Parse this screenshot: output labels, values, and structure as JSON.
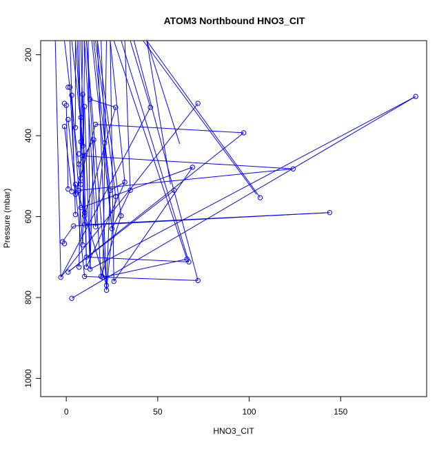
{
  "chart_data": {
    "type": "line",
    "title": "ATOM3 Northbound HNO3_CIT",
    "xlabel": "HNO3_CIT",
    "ylabel": "Pressure (mbar)",
    "xlim": [
      -14,
      197
    ],
    "ylim": [
      1045,
      165
    ],
    "y_reversed": true,
    "grid": false,
    "legend": "none",
    "marker": "open-circle",
    "series_color": "#0000ff",
    "x_ticks": [
      0,
      50,
      100,
      150
    ],
    "y_ticks": [
      200,
      400,
      600,
      800,
      1000
    ],
    "series": [
      {
        "points": [
          [
            -3,
            750
          ],
          [
            1,
            737
          ],
          [
            -2,
            662
          ],
          [
            -1,
            667
          ],
          [
            4,
            623
          ],
          [
            5,
            595
          ],
          [
            10,
            590
          ],
          [
            5,
            545
          ],
          [
            7,
            535
          ],
          [
            5,
            520
          ],
          [
            8,
            520
          ],
          [
            8,
            505
          ],
          [
            7,
            470
          ],
          [
            9,
            450
          ],
          [
            7,
            445
          ],
          [
            10,
            450
          ],
          [
            9,
            425
          ],
          [
            8,
            415
          ],
          [
            5,
            380
          ],
          [
            3,
            300
          ],
          [
            2,
            280
          ],
          [
            1,
            280
          ],
          [
            0,
            325
          ],
          [
            -1,
            320
          ],
          [
            -1,
            377
          ],
          [
            1,
            360
          ],
          [
            1,
            532
          ],
          [
            3,
            538
          ],
          [
            9,
            670
          ],
          [
            7,
            725
          ],
          [
            10,
            748
          ],
          [
            11,
            725
          ],
          [
            11,
            700
          ],
          [
            10,
            620
          ],
          [
            16,
            625
          ],
          [
            25,
            630
          ],
          [
            22,
            770
          ],
          [
            22,
            782
          ],
          [
            26,
            760
          ],
          [
            20,
            750
          ],
          [
            24,
            535
          ],
          [
            32,
            515
          ],
          [
            27,
            550
          ],
          [
            30,
            598
          ],
          [
            35,
            535
          ],
          [
            16,
            372
          ],
          [
            21,
            418
          ],
          [
            27,
            330
          ],
          [
            46,
            330
          ],
          [
            69,
            478
          ],
          [
            97,
            393
          ],
          [
            124,
            482
          ],
          [
            144,
            590
          ],
          [
            191,
            303
          ],
          [
            72,
            320
          ],
          [
            106,
            553
          ],
          [
            59,
            535
          ],
          [
            67,
            712
          ],
          [
            66,
            705
          ],
          [
            72,
            758
          ],
          [
            3,
            802
          ],
          [
            8,
            578
          ],
          [
            10,
            598
          ],
          [
            13,
            310
          ],
          [
            9,
            298
          ],
          [
            8,
            355
          ],
          [
            10,
            328
          ],
          [
            15,
            410
          ],
          [
            13,
            730
          ],
          [
            19,
            748
          ]
        ]
      }
    ],
    "segments": [
      [
        -6,
        165,
        -3,
        750
      ],
      [
        -1,
        165,
        8,
        520
      ],
      [
        2,
        165,
        5,
        595
      ],
      [
        3,
        165,
        10,
        450
      ],
      [
        5,
        165,
        9,
        425
      ],
      [
        5,
        165,
        5,
        380
      ],
      [
        6,
        165,
        10,
        590
      ],
      [
        7,
        165,
        8,
        505
      ],
      [
        8,
        165,
        11,
        700
      ],
      [
        9,
        165,
        7,
        725
      ],
      [
        10,
        165,
        9,
        670
      ],
      [
        10,
        165,
        16,
        625
      ],
      [
        11,
        165,
        22,
        770
      ],
      [
        11,
        165,
        19,
        748
      ],
      [
        12,
        165,
        13,
        730
      ],
      [
        14,
        165,
        25,
        630
      ],
      [
        15,
        165,
        24,
        535
      ],
      [
        16,
        165,
        27,
        550
      ],
      [
        17,
        165,
        22,
        782
      ],
      [
        17,
        165,
        30,
        598
      ],
      [
        19,
        165,
        21,
        418
      ],
      [
        22,
        165,
        20,
        750
      ],
      [
        24,
        165,
        26,
        760
      ],
      [
        24,
        165,
        32,
        515
      ],
      [
        26,
        165,
        66,
        705
      ],
      [
        30,
        165,
        67,
        712
      ],
      [
        32,
        165,
        35,
        535
      ],
      [
        35,
        165,
        46,
        330
      ],
      [
        37,
        165,
        72,
        758
      ],
      [
        42,
        165,
        104,
        545
      ],
      [
        44,
        165,
        57,
        520
      ],
      [
        44,
        165,
        62,
        420
      ],
      [
        44,
        165,
        106,
        553
      ],
      [
        -3,
        750,
        72,
        320
      ],
      [
        -3,
        750,
        46,
        330
      ],
      [
        -2,
        662,
        4,
        623
      ],
      [
        1,
        737,
        97,
        393
      ],
      [
        1,
        737,
        59,
        535
      ],
      [
        3,
        802,
        191,
        303
      ],
      [
        4,
        623,
        144,
        590
      ],
      [
        5,
        545,
        16,
        372
      ],
      [
        7,
        535,
        124,
        482
      ],
      [
        7,
        470,
        15,
        410
      ],
      [
        8,
        578,
        69,
        478
      ],
      [
        9,
        450,
        124,
        482
      ],
      [
        10,
        620,
        144,
        590
      ],
      [
        10,
        748,
        72,
        758
      ],
      [
        11,
        725,
        32,
        515
      ],
      [
        11,
        700,
        67,
        712
      ],
      [
        13,
        310,
        27,
        330
      ],
      [
        13,
        730,
        191,
        303
      ],
      [
        15,
        410,
        13,
        730
      ],
      [
        16,
        372,
        97,
        393
      ],
      [
        16,
        625,
        21,
        418
      ],
      [
        19,
        748,
        30,
        598
      ],
      [
        20,
        750,
        66,
        705
      ],
      [
        21,
        418,
        25,
        630
      ],
      [
        22,
        770,
        24,
        535
      ],
      [
        22,
        782,
        27,
        550
      ],
      [
        24,
        535,
        32,
        515
      ],
      [
        25,
        630,
        35,
        535
      ],
      [
        26,
        760,
        69,
        478
      ],
      [
        27,
        330,
        10,
        598
      ],
      [
        10,
        328,
        13,
        730
      ],
      [
        3,
        300,
        9,
        670
      ],
      [
        2,
        280,
        5,
        545
      ],
      [
        0,
        325,
        1,
        532
      ],
      [
        1,
        360,
        10,
        748
      ],
      [
        -1,
        377,
        3,
        538
      ],
      [
        9,
        298,
        11,
        725
      ],
      [
        8,
        355,
        10,
        620
      ],
      [
        5,
        520,
        22,
        770
      ]
    ]
  }
}
